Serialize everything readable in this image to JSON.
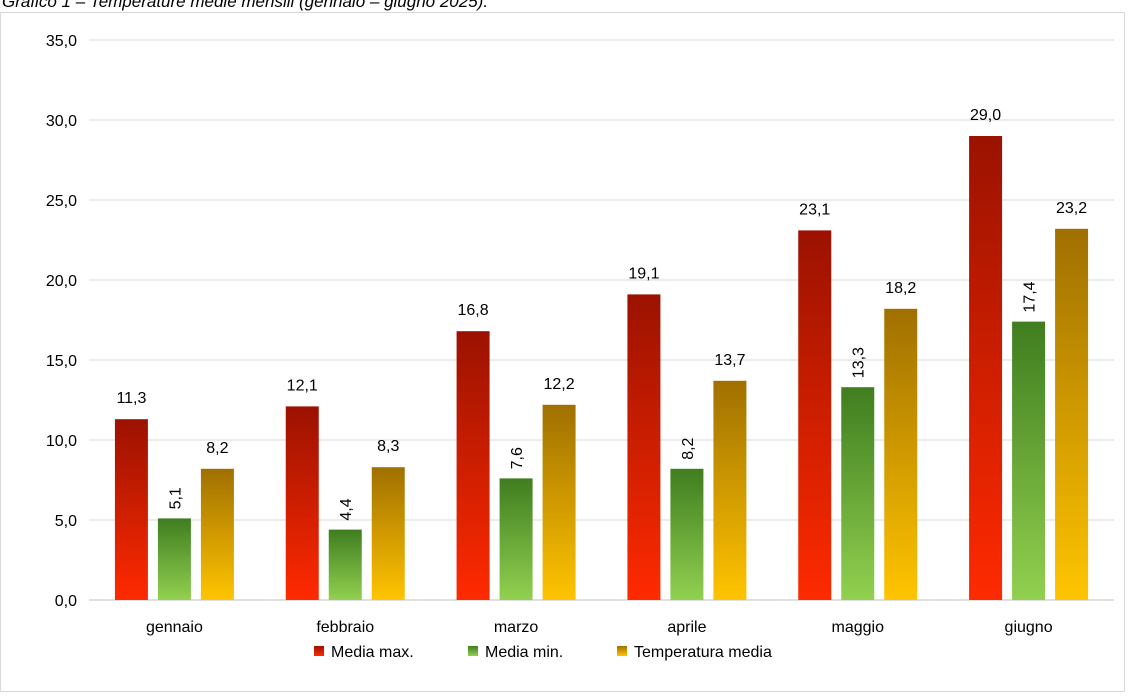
{
  "caption": "Grafico 1 – Temperature medie mensili (gennaio – giugno 2025).",
  "colors": {
    "media_max": [
      "#9b1200",
      "#ff2a00"
    ],
    "media_min": [
      "#3f7d20",
      "#92d050"
    ],
    "temperatura_media": [
      "#a07000",
      "#ffc400"
    ],
    "grid": "#d9d9d9",
    "axis": "#bfbfbf"
  },
  "chart_data": {
    "type": "bar",
    "categories": [
      "gennaio",
      "febbraio",
      "marzo",
      "aprile",
      "maggio",
      "giugno"
    ],
    "series": [
      {
        "name": "Media max.",
        "values": [
          11.3,
          12.1,
          16.8,
          19.1,
          23.1,
          29.0
        ],
        "labels": [
          "11,3",
          "12,1",
          "16,8",
          "19,1",
          "23,1",
          "29,0"
        ],
        "label_rotation": "horizontal"
      },
      {
        "name": "Media min.",
        "values": [
          5.1,
          4.4,
          7.6,
          8.2,
          13.3,
          17.4
        ],
        "labels": [
          "5,1",
          "4,4",
          "7,6",
          "8,2",
          "13,3",
          "17,4"
        ],
        "label_rotation": "vertical"
      },
      {
        "name": "Temperatura media",
        "values": [
          8.2,
          8.3,
          12.2,
          13.7,
          18.2,
          23.2
        ],
        "labels": [
          "8,2",
          "8,3",
          "12,2",
          "13,7",
          "18,2",
          "23,2"
        ],
        "label_rotation": "horizontal"
      }
    ],
    "ylim": [
      0,
      35
    ],
    "yticks": [
      "0,0",
      "5,0",
      "10,0",
      "15,0",
      "20,0",
      "25,0",
      "30,0",
      "35,0"
    ],
    "grid": true,
    "legend": "bottom"
  }
}
